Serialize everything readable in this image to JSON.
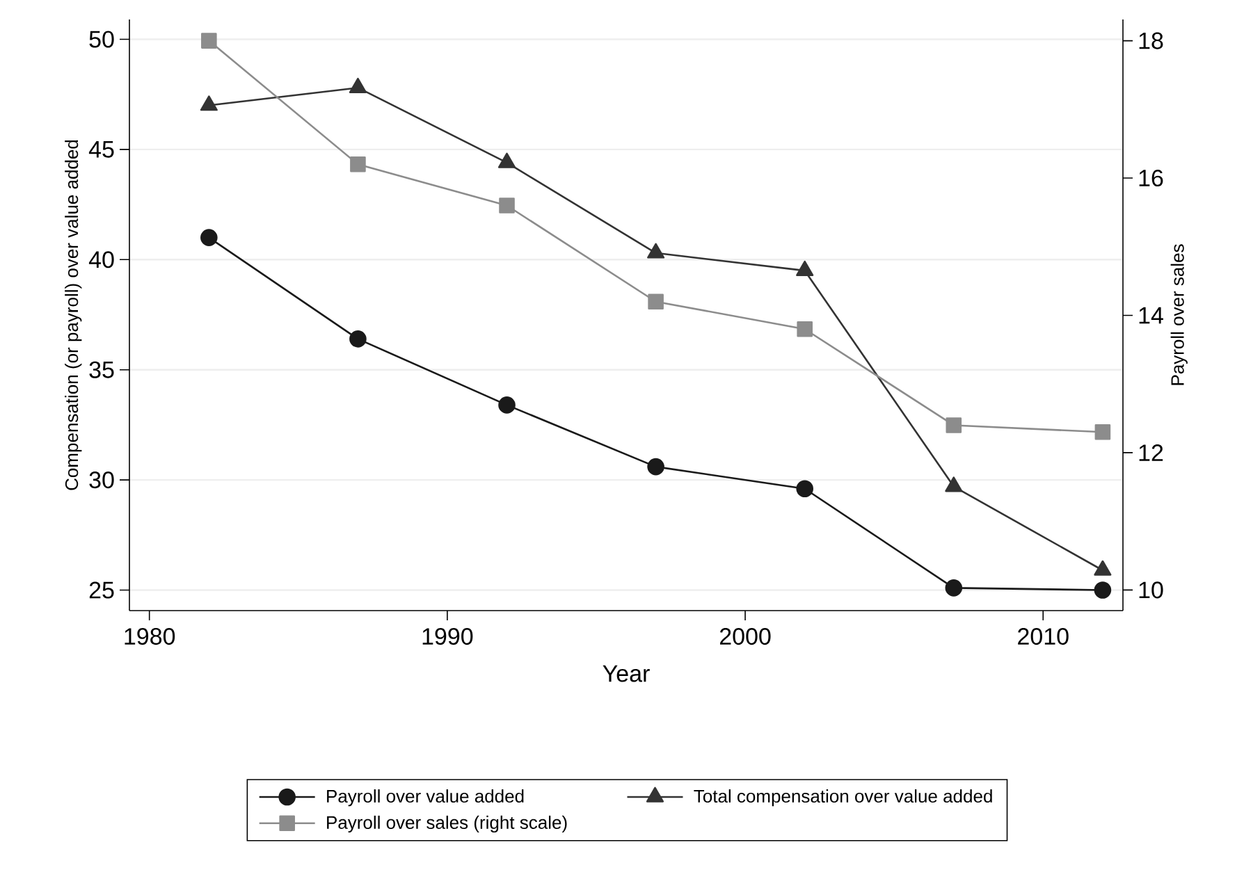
{
  "chart_data": {
    "type": "line",
    "xlabel": "Year",
    "ylabel": "Compensation (or payroll) over value added",
    "y2label": "Payroll over sales",
    "x": [
      1982,
      1987,
      1992,
      1997,
      2002,
      2007,
      2012
    ],
    "xlim": [
      1979.33,
      2012.68
    ],
    "xticks": [
      1980,
      1990,
      2000,
      2010
    ],
    "ylim": [
      24.07,
      50.9
    ],
    "yticks": [
      25,
      30,
      35,
      40,
      45,
      50
    ],
    "y2lim": [
      9.7,
      18.31
    ],
    "y2ticks": [
      10,
      12,
      14,
      16,
      18
    ],
    "grid": "y",
    "legend": "bottom",
    "line_style": "solid",
    "series": [
      {
        "name": "Payroll over value added",
        "color": "#1a1a1a",
        "marker": "circle",
        "values": [
          41.0,
          36.4,
          33.4,
          30.6,
          29.6,
          25.1,
          25.0
        ]
      },
      {
        "name": "Total compensation over value added",
        "color": "#333333",
        "marker": "triangle",
        "values": [
          47.0,
          47.8,
          44.4,
          40.3,
          39.5,
          29.7,
          25.9
        ]
      },
      {
        "name": "Payroll over sales (right scale)",
        "color": "#8c8c8c",
        "marker": "square",
        "axis": "y2",
        "values": [
          18.0,
          16.2,
          15.6,
          14.2,
          13.8,
          12.4,
          12.3
        ]
      }
    ]
  }
}
